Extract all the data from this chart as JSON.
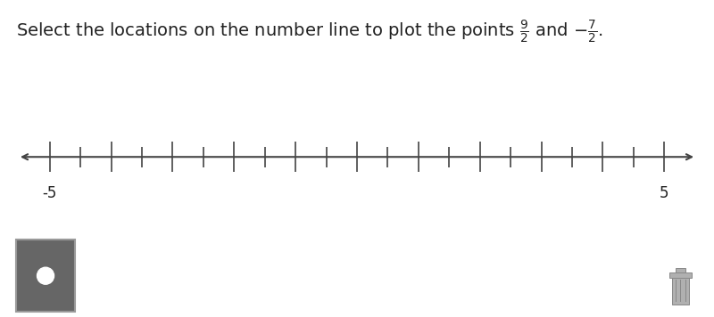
{
  "title_fontsize": 14,
  "number_line_min": -5,
  "number_line_max": 5,
  "tick_step": 0.5,
  "labeled_ticks": [
    -5,
    5
  ],
  "tick_label_fontsize": 12,
  "bg_color": "#ffffff",
  "border_color": "#bbbbbb",
  "panel_bg_color": "#e2e2e2",
  "panel_box_color": "#666666",
  "panel_box_border": "#aaaaaa",
  "panel_dot_color": "#ffffff",
  "axis_color": "#444444",
  "tick_color": "#444444"
}
